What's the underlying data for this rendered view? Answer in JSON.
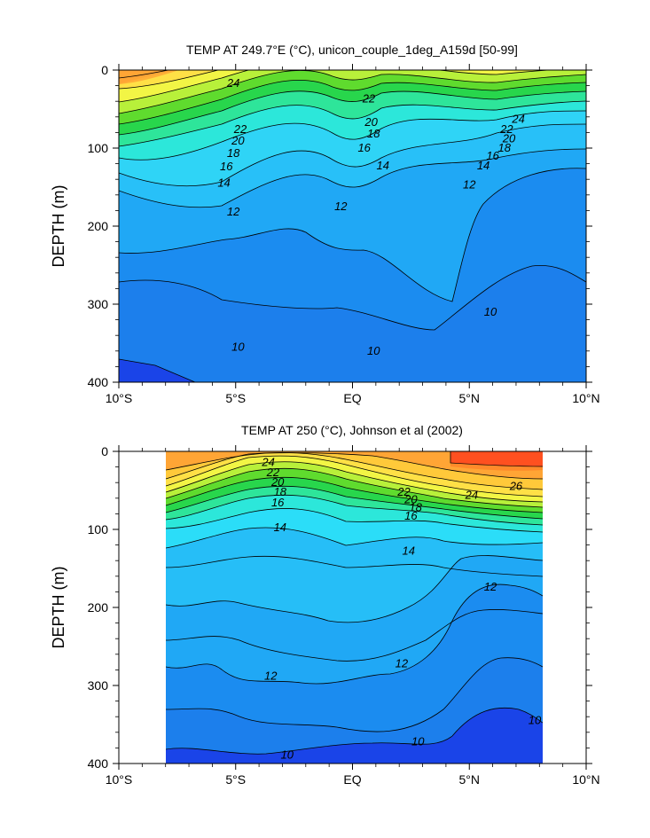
{
  "chart_data": [
    {
      "type": "contour",
      "title": "TEMP AT 249.7°E (°C), unicon_couple_1deg_A159d [50-99]",
      "ylabel": "DEPTH (m)",
      "xlabel": "",
      "x_ticks": [
        {
          "value": -10,
          "label": "10°S"
        },
        {
          "value": -5,
          "label": "5°S"
        },
        {
          "value": 0,
          "label": "EQ"
        },
        {
          "value": 5,
          "label": "5°N"
        },
        {
          "value": 10,
          "label": "10°N"
        }
      ],
      "y_ticks": [
        0,
        100,
        200,
        300,
        400
      ],
      "xlim": [
        -10,
        10
      ],
      "ylim": [
        0,
        400
      ],
      "y_inverted": true,
      "contour_labels": [
        {
          "text": "24",
          "lat": -5.1,
          "depth": 17
        },
        {
          "text": "22",
          "lat": 0.7,
          "depth": 37
        },
        {
          "text": "22",
          "lat": -4.8,
          "depth": 76
        },
        {
          "text": "20",
          "lat": 0.8,
          "depth": 67
        },
        {
          "text": "20",
          "lat": -4.9,
          "depth": 91
        },
        {
          "text": "18",
          "lat": 0.9,
          "depth": 82
        },
        {
          "text": "18",
          "lat": -5.1,
          "depth": 107
        },
        {
          "text": "16",
          "lat": 0.5,
          "depth": 100
        },
        {
          "text": "16",
          "lat": -5.4,
          "depth": 124
        },
        {
          "text": "14",
          "lat": 1.3,
          "depth": 123
        },
        {
          "text": "14",
          "lat": -5.5,
          "depth": 145
        },
        {
          "text": "12",
          "lat": 5.0,
          "depth": 147
        },
        {
          "text": "12",
          "lat": -5.1,
          "depth": 182
        },
        {
          "text": "12",
          "lat": -0.5,
          "depth": 175
        },
        {
          "text": "24",
          "lat": 7.1,
          "depth": 63
        },
        {
          "text": "22",
          "lat": 6.6,
          "depth": 76
        },
        {
          "text": "20",
          "lat": 6.7,
          "depth": 88
        },
        {
          "text": "18",
          "lat": 6.5,
          "depth": 100
        },
        {
          "text": "16",
          "lat": 6.0,
          "depth": 110
        },
        {
          "text": "14",
          "lat": 5.6,
          "depth": 123
        },
        {
          "text": "10",
          "lat": 5.9,
          "depth": 310
        },
        {
          "text": "10",
          "lat": -4.9,
          "depth": 355
        },
        {
          "text": "10",
          "lat": 0.9,
          "depth": 360
        }
      ]
    },
    {
      "type": "contour",
      "title": "TEMP AT 250 (°C), Johnson et al (2002)",
      "ylabel": "DEPTH (m)",
      "xlabel": "",
      "x_ticks": [
        {
          "value": -10,
          "label": "10°S"
        },
        {
          "value": -5,
          "label": "5°S"
        },
        {
          "value": 0,
          "label": "EQ"
        },
        {
          "value": 5,
          "label": "5°N"
        },
        {
          "value": 10,
          "label": "10°N"
        }
      ],
      "y_ticks": [
        0,
        100,
        200,
        300,
        400
      ],
      "xlim": [
        -10,
        10
      ],
      "ylim": [
        0,
        400
      ],
      "y_inverted": true,
      "data_extent_lat": [
        -8,
        8
      ],
      "contour_labels": [
        {
          "text": "24",
          "lat": -3.6,
          "depth": 14
        },
        {
          "text": "22",
          "lat": -3.4,
          "depth": 27
        },
        {
          "text": "20",
          "lat": -3.2,
          "depth": 40
        },
        {
          "text": "18",
          "lat": -3.1,
          "depth": 52
        },
        {
          "text": "16",
          "lat": -3.2,
          "depth": 66
        },
        {
          "text": "14",
          "lat": -3.1,
          "depth": 98
        },
        {
          "text": "22",
          "lat": 2.2,
          "depth": 52
        },
        {
          "text": "20",
          "lat": 2.5,
          "depth": 62
        },
        {
          "text": "18",
          "lat": 2.7,
          "depth": 72
        },
        {
          "text": "16",
          "lat": 2.5,
          "depth": 83
        },
        {
          "text": "24",
          "lat": 5.1,
          "depth": 56
        },
        {
          "text": "26",
          "lat": 7.0,
          "depth": 45
        },
        {
          "text": "14",
          "lat": 2.4,
          "depth": 128
        },
        {
          "text": "12",
          "lat": 5.9,
          "depth": 174
        },
        {
          "text": "12",
          "lat": -3.5,
          "depth": 288
        },
        {
          "text": "12",
          "lat": 2.1,
          "depth": 272
        },
        {
          "text": "10",
          "lat": 7.8,
          "depth": 345
        },
        {
          "text": "10",
          "lat": -2.8,
          "depth": 389
        },
        {
          "text": "10",
          "lat": 2.8,
          "depth": 372
        }
      ]
    }
  ]
}
